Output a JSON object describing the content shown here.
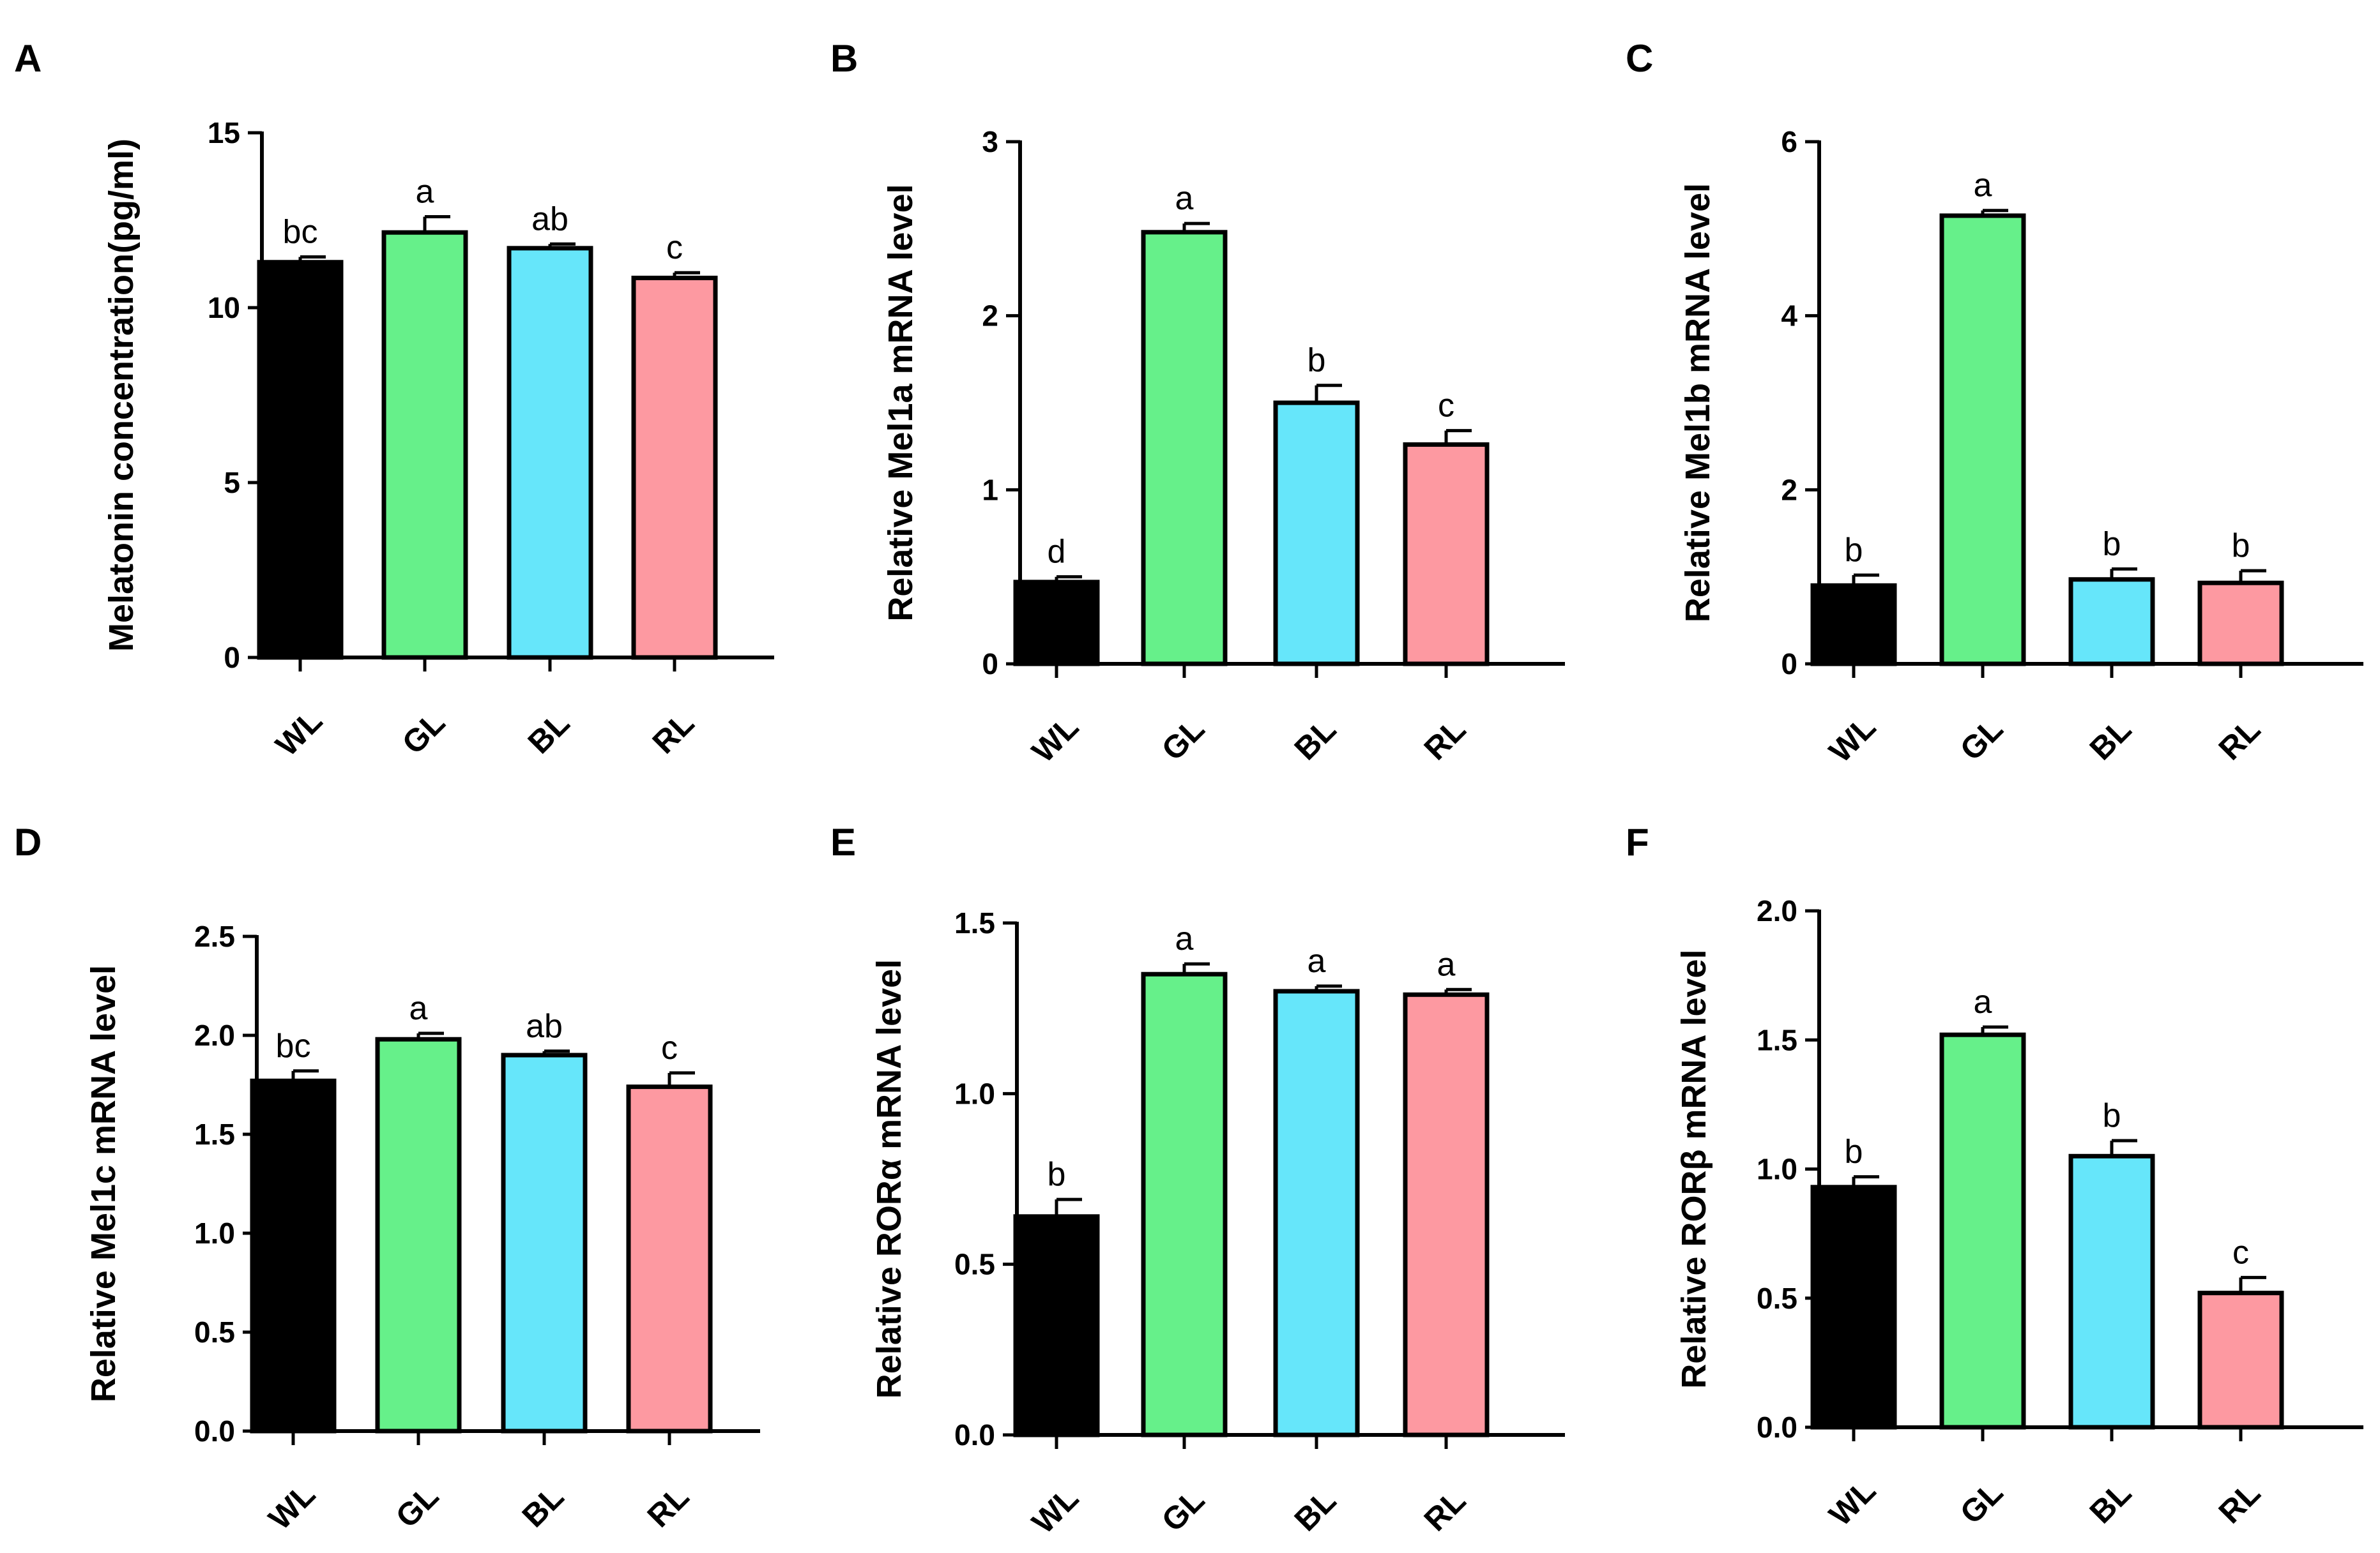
{
  "colors": {
    "WL": "#000000",
    "GL": "#66f08a",
    "BL": "#66e6fa",
    "RL": "#fd99a1",
    "axis": "#000000"
  },
  "panels": [
    {
      "letter": "A",
      "chart_data": {
        "type": "bar",
        "categories": [
          "WL",
          "GL",
          "BL",
          "RL"
        ],
        "ylabel": "Melatonin concentration(pg/ml)",
        "ylim": [
          0,
          15
        ],
        "yticks": [
          "0",
          "5",
          "10",
          "15"
        ],
        "values": [
          11.3,
          12.15,
          11.7,
          10.85
        ],
        "errors": [
          0.15,
          0.45,
          0.12,
          0.15
        ],
        "significance": [
          "bc",
          "a",
          "ab",
          "c"
        ]
      }
    },
    {
      "letter": "B",
      "chart_data": {
        "type": "bar",
        "categories": [
          "WL",
          "GL",
          "BL",
          "RL"
        ],
        "ylabel": "Relative Mel1a mRNA level",
        "ylim": [
          0,
          3
        ],
        "yticks": [
          "0",
          "1",
          "2",
          "3"
        ],
        "values": [
          0.47,
          2.48,
          1.5,
          1.26
        ],
        "errors": [
          0.03,
          0.05,
          0.1,
          0.08
        ],
        "significance": [
          "d",
          "a",
          "b",
          "c"
        ]
      }
    },
    {
      "letter": "C",
      "chart_data": {
        "type": "bar",
        "categories": [
          "WL",
          "GL",
          "BL",
          "RL"
        ],
        "ylabel": "Relative Mel1b mRNA level",
        "ylim": [
          0,
          6
        ],
        "yticks": [
          "0",
          "2",
          "4",
          "6"
        ],
        "values": [
          0.9,
          5.15,
          0.97,
          0.93
        ],
        "errors": [
          0.12,
          0.06,
          0.12,
          0.14
        ],
        "significance": [
          "b",
          "a",
          "b",
          "b"
        ]
      }
    },
    {
      "letter": "D",
      "chart_data": {
        "type": "bar",
        "categories": [
          "WL",
          "GL",
          "BL",
          "RL"
        ],
        "ylabel": "Relative Mel1c mRNA level",
        "ylim": [
          0,
          2.5
        ],
        "yticks": [
          "0.0",
          "0.5",
          "1.0",
          "1.5",
          "2.0",
          "2.5"
        ],
        "values": [
          1.77,
          1.98,
          1.9,
          1.74
        ],
        "errors": [
          0.05,
          0.03,
          0.02,
          0.07
        ],
        "significance": [
          "bc",
          "a",
          "ab",
          "c"
        ]
      }
    },
    {
      "letter": "E",
      "chart_data": {
        "type": "bar",
        "categories": [
          "WL",
          "GL",
          "BL",
          "RL"
        ],
        "ylabel": "Relative RORα mRNA level",
        "ylim": [
          0,
          1.5
        ],
        "yticks": [
          "0.0",
          "0.5",
          "1.0",
          "1.5"
        ],
        "values": [
          0.64,
          1.35,
          1.3,
          1.29
        ],
        "errors": [
          0.05,
          0.03,
          0.015,
          0.015
        ],
        "significance": [
          "b",
          "a",
          "a",
          "a"
        ]
      }
    },
    {
      "letter": "F",
      "chart_data": {
        "type": "bar",
        "categories": [
          "WL",
          "GL",
          "BL",
          "RL"
        ],
        "ylabel": "Relative RORβ mRNA level",
        "ylim": [
          0,
          2.0
        ],
        "yticks": [
          "0.0",
          "0.5",
          "1.0",
          "1.5",
          "2.0"
        ],
        "values": [
          0.93,
          1.52,
          1.05,
          0.52
        ],
        "errors": [
          0.04,
          0.03,
          0.06,
          0.06
        ],
        "significance": [
          "b",
          "a",
          "b",
          "c"
        ]
      }
    }
  ]
}
